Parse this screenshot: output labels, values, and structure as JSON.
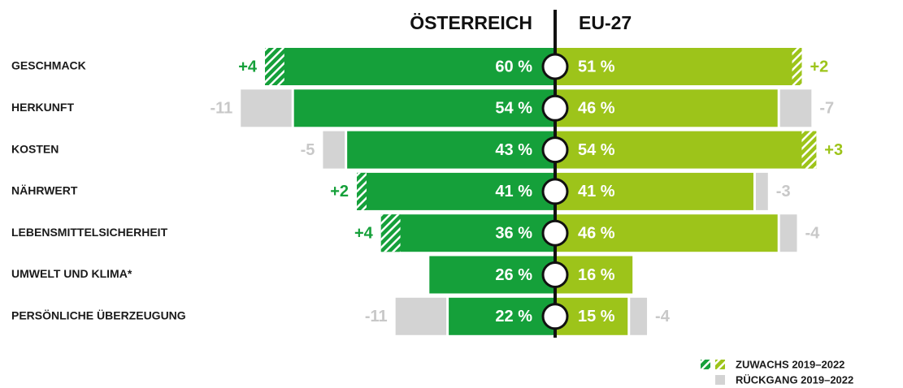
{
  "chart_data": {
    "type": "butterfly",
    "categories": [
      "GESCHMACK",
      "HERKUNFT",
      "KOSTEN",
      "NÄHRWERT",
      "LEBENSMITTELSICHERHEIT",
      "UMWELT UND KLIMA*",
      "PERSÖNLICHE ÜBERZEUGUNG"
    ],
    "series": [
      {
        "name": "ÖSTERREICH",
        "color": "#15a03a",
        "values": [
          60,
          54,
          43,
          41,
          36,
          26,
          22
        ],
        "value_labels": [
          "60 %",
          "54 %",
          "43 %",
          "41 %",
          "36 %",
          "26 %",
          "22 %"
        ],
        "changes": [
          4,
          -11,
          -5,
          2,
          4,
          null,
          -11
        ],
        "change_labels": [
          "+4",
          "-11",
          "-5",
          "+2",
          "+4",
          null,
          "-11"
        ]
      },
      {
        "name": "EU-27",
        "color": "#9dc41a",
        "values": [
          51,
          46,
          54,
          41,
          46,
          16,
          15
        ],
        "value_labels": [
          "51 %",
          "46 %",
          "54 %",
          "41 %",
          "46 %",
          "16 %",
          "15 %"
        ],
        "changes": [
          2,
          -7,
          3,
          -3,
          -4,
          null,
          -4
        ],
        "change_labels": [
          "+2",
          "-7",
          "+3",
          "-3",
          "-4",
          null,
          "-4"
        ]
      }
    ],
    "decrease_color": "#d3d3d3",
    "legend": {
      "increase": "ZUWACHS 2019–2022",
      "decrease": "RÜCKGANG 2019–2022"
    }
  }
}
